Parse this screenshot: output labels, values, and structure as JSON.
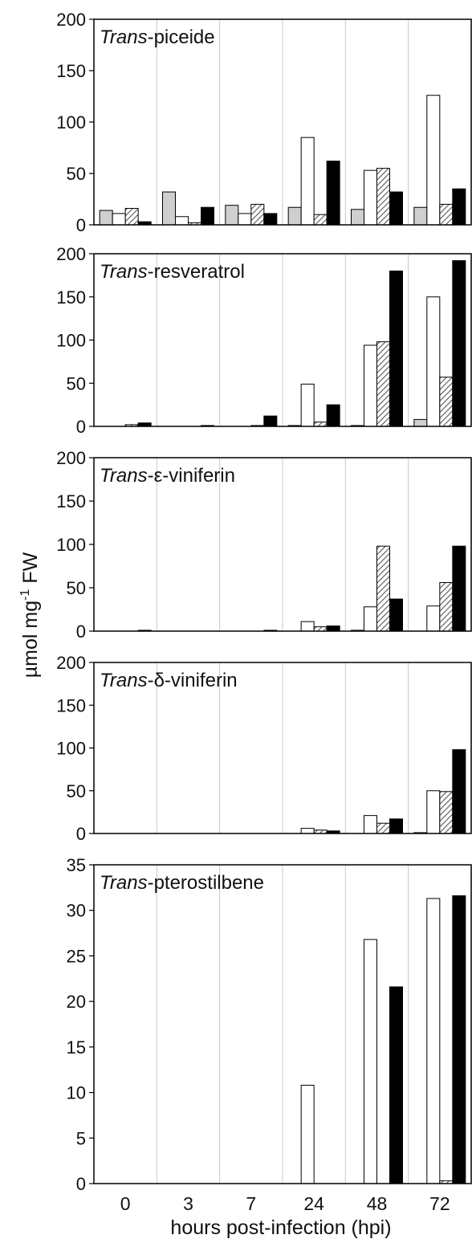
{
  "chart_data": {
    "type": "bar",
    "ylabel": "µmol mg-1 FW",
    "ylabel_parts": {
      "base": "µmol mg",
      "sup": "-1",
      "end": " FW"
    },
    "xlabel": "hours post-infection (hpi)",
    "categories": [
      "0",
      "3",
      "7",
      "24",
      "48",
      "72"
    ],
    "bar_colors": [
      "#cfcfcf",
      "#ffffff",
      "hatch",
      "#000000"
    ],
    "grid": "vertical lines between time groups",
    "panels": [
      {
        "title_italic": "Trans",
        "title_rest": "-piceide",
        "ylim": [
          0,
          200
        ],
        "yticks": [
          "0",
          "50",
          "100",
          "150",
          "200"
        ],
        "series": [
          {
            "values": [
              14,
              32,
              19,
              17,
              15,
              17
            ]
          },
          {
            "values": [
              11,
              8,
              11,
              85,
              53,
              126
            ]
          },
          {
            "values": [
              16,
              2,
              20,
              10,
              55,
              20
            ]
          },
          {
            "values": [
              3,
              17,
              11,
              62,
              32,
              35
            ]
          }
        ]
      },
      {
        "title_italic": "Trans",
        "title_rest": "-resveratrol",
        "ylim": [
          0,
          200
        ],
        "yticks": [
          "0",
          "50",
          "100",
          "150",
          "200"
        ],
        "series": [
          {
            "values": [
              0,
              0,
              0,
              1,
              1,
              8
            ]
          },
          {
            "values": [
              0,
              0,
              0,
              49,
              94,
              150
            ]
          },
          {
            "values": [
              2,
              0,
              1,
              5,
              98,
              57
            ]
          },
          {
            "values": [
              4,
              1,
              12,
              25,
              180,
              192
            ]
          }
        ]
      },
      {
        "title_italic": "Trans",
        "title_rest": "-ε-viniferin",
        "ylim": [
          0,
          200
        ],
        "yticks": [
          "0",
          "50",
          "100",
          "150",
          "200"
        ],
        "series": [
          {
            "values": [
              0,
              0,
              0,
              0,
              1,
              0
            ]
          },
          {
            "values": [
              0,
              0,
              0,
              11,
              28,
              29
            ]
          },
          {
            "values": [
              0,
              0,
              0,
              5,
              98,
              56
            ]
          },
          {
            "values": [
              1,
              0,
              1,
              6,
              37,
              98
            ]
          }
        ]
      },
      {
        "title_italic": "Trans",
        "title_rest": "-δ-viniferin",
        "ylim": [
          0,
          200
        ],
        "yticks": [
          "0",
          "50",
          "100",
          "150",
          "200"
        ],
        "series": [
          {
            "values": [
              0,
              0,
              0,
              0,
              0,
              1
            ]
          },
          {
            "values": [
              0,
              0,
              0,
              6,
              21,
              50
            ]
          },
          {
            "values": [
              0,
              0,
              0,
              4,
              12,
              49
            ]
          },
          {
            "values": [
              0,
              0,
              0,
              3,
              17,
              98
            ]
          }
        ]
      },
      {
        "title_italic": "Trans",
        "title_rest": "-pterostilbene",
        "ylim": [
          0,
          35
        ],
        "yticks": [
          "0",
          "5",
          "10",
          "15",
          "20",
          "25",
          "30",
          "35"
        ],
        "series": [
          {
            "values": [
              0,
              0,
              0,
              0,
              0,
              0
            ]
          },
          {
            "values": [
              0,
              0,
              0,
              10.8,
              26.8,
              31.3
            ]
          },
          {
            "values": [
              0,
              0,
              0,
              0,
              0,
              0.3
            ]
          },
          {
            "values": [
              0,
              0,
              0,
              0,
              21.6,
              31.6
            ]
          }
        ]
      }
    ]
  }
}
